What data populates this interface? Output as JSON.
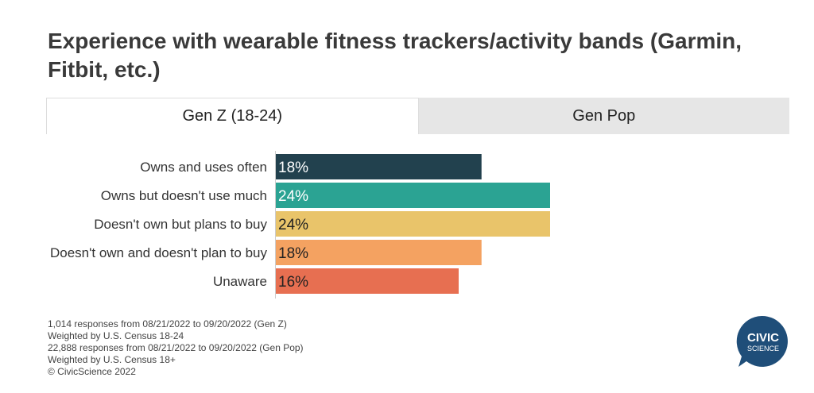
{
  "title": "Experience with wearable fitness trackers/activity bands (Garmin, Fitbit, etc.)",
  "tabs": [
    {
      "label": "Gen Z (18-24)",
      "active": true
    },
    {
      "label": "Gen Pop",
      "active": false
    }
  ],
  "chart_data": {
    "type": "bar",
    "orientation": "horizontal",
    "categories": [
      "Owns and uses often",
      "Owns but doesn't use much",
      "Doesn't own but plans to buy",
      "Doesn't own and doesn't plan to buy",
      "Unaware"
    ],
    "values": [
      18,
      24,
      24,
      18,
      16
    ],
    "value_labels": [
      "18%",
      "24%",
      "24%",
      "18%",
      "16%"
    ],
    "colors": [
      "#22414e",
      "#2ba393",
      "#e9c46a",
      "#f4a261",
      "#e76f51"
    ],
    "label_colors": [
      "#ffffff",
      "#ffffff",
      "#222222",
      "#222222",
      "#222222"
    ],
    "xlim": [
      0,
      24
    ],
    "grid": false
  },
  "notes": [
    "1,014 responses from 08/21/2022 to 09/20/2022 (Gen Z)",
    "Weighted by U.S. Census 18-24",
    "22,888 responses from 08/21/2022 to 09/20/2022 (Gen Pop)",
    "Weighted by U.S. Census 18+",
    "© CivicScience 2022"
  ],
  "logo": {
    "line1": "CIVIC",
    "line2": "SCIENCE",
    "color": "#1f4e79"
  }
}
